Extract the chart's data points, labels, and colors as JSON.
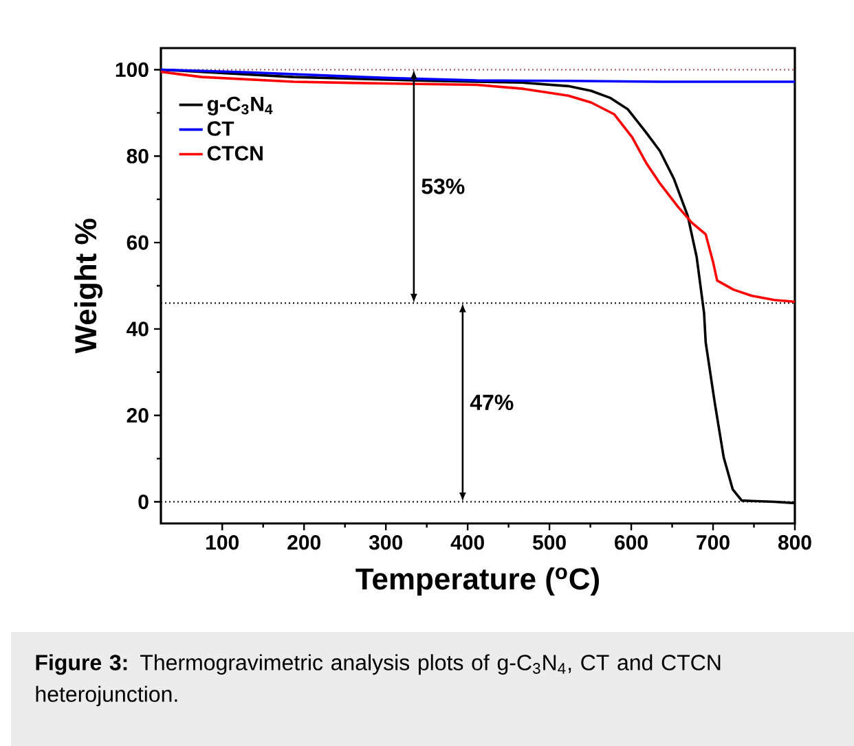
{
  "chart_data": {
    "type": "line",
    "xlabel": "Temperature ($^{o}$C)",
    "ylabel": "Weight %",
    "xlim": [
      25,
      800
    ],
    "ylim": [
      -5,
      105
    ],
    "xticks": [
      100,
      200,
      300,
      400,
      500,
      600,
      700,
      800
    ],
    "yticks": [
      0,
      20,
      40,
      60,
      80,
      100
    ],
    "grid": false,
    "legend": "top left",
    "marker": "none",
    "line_style": "solid",
    "series": [
      {
        "name": "g-C$_{3}$N$_{4}$",
        "color": "#000000",
        "x": [
          25,
          187,
          355,
          467,
          523,
          551,
          574,
          596,
          618,
          635,
          652,
          669,
          680,
          689,
          691,
          702,
          713,
          724,
          735,
          747,
          775,
          800
        ],
        "values": [
          100,
          98.3,
          97.4,
          97.0,
          96.2,
          95.1,
          93.5,
          90.8,
          85.5,
          81.2,
          74.8,
          66.2,
          56.6,
          43.7,
          36.9,
          23,
          10.3,
          2.9,
          0.3,
          0.2,
          0,
          -0.3
        ]
      },
      {
        "name": "CT",
        "color": "#0000ff",
        "x": [
          25,
          131,
          299,
          411,
          523,
          635,
          800
        ],
        "values": [
          100,
          99.4,
          98.1,
          97.5,
          97.4,
          97.2,
          97.2
        ]
      },
      {
        "name": "CTCN",
        "color": "#ff0000",
        "x": [
          25,
          75,
          187,
          299,
          411,
          467,
          523,
          551,
          579,
          601,
          618,
          635,
          657,
          674,
          691,
          700,
          705,
          725,
          747,
          775,
          800
        ],
        "values": [
          99.5,
          98.3,
          97.2,
          96.8,
          96.5,
          95.6,
          94,
          92.4,
          89.7,
          84.4,
          78.5,
          73.7,
          68.3,
          64.6,
          61.9,
          55.5,
          51.2,
          49.1,
          47.7,
          46.7,
          46.3
        ]
      }
    ],
    "ref_lines": [
      {
        "axis": "y",
        "value": 100,
        "color": "#a05050",
        "line_style": "dotted"
      },
      {
        "axis": "y",
        "value": 46,
        "color": "#000000",
        "line_style": "dotted"
      },
      {
        "axis": "y",
        "value": 0,
        "color": "#000000",
        "line_style": "dotted"
      }
    ],
    "annotations": [
      "53%",
      "47%",
      "**Figure 3:** Thermogravimetric analysis plots of g-C$_{3}$N$_{4}$, CT and CTCN heterojunction."
    ]
  }
}
